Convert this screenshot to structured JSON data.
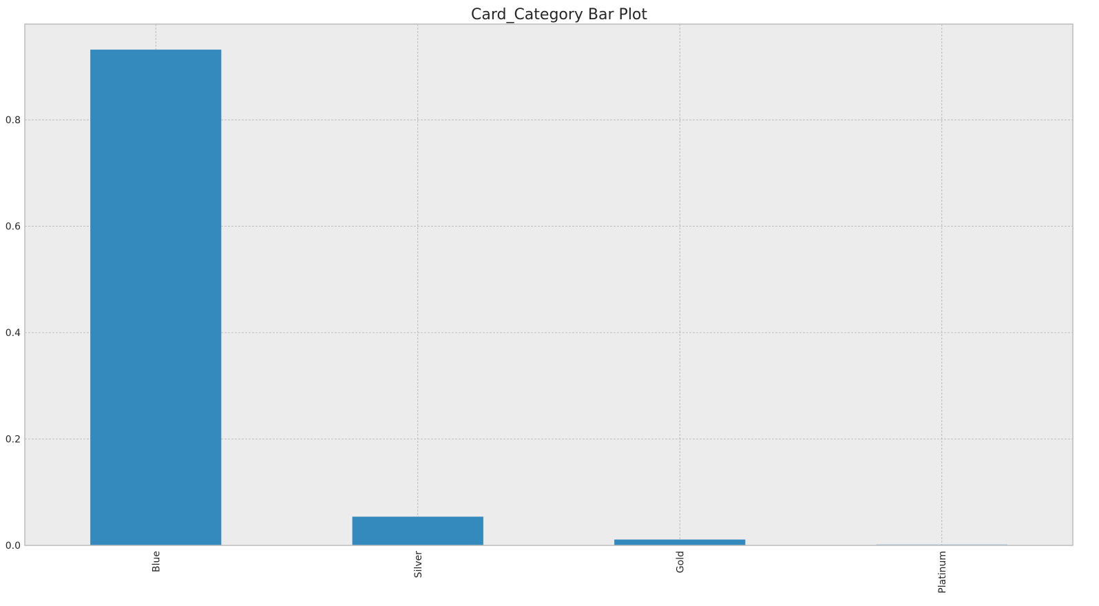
{
  "chart_data": {
    "type": "bar",
    "title": "Card_Category Bar Plot",
    "xlabel": "",
    "ylabel": "",
    "categories": [
      "Blue",
      "Silver",
      "Gold",
      "Platinum"
    ],
    "values": [
      0.932,
      0.054,
      0.011,
      0.002
    ],
    "ylim": [
      0,
      0.98
    ],
    "yticks": [
      0.0,
      0.2,
      0.4,
      0.6,
      0.8
    ],
    "ytick_labels": [
      "0.0",
      "0.2",
      "0.4",
      "0.6",
      "0.8"
    ],
    "grid": true,
    "legend": "none",
    "x_tick_rotation": "vertical"
  },
  "colors": {
    "bar": "#348abd",
    "plot_background": "#ececec",
    "grid": "#b0b0b0",
    "axes_edge": "#bcbcbc",
    "text": "#262626"
  }
}
